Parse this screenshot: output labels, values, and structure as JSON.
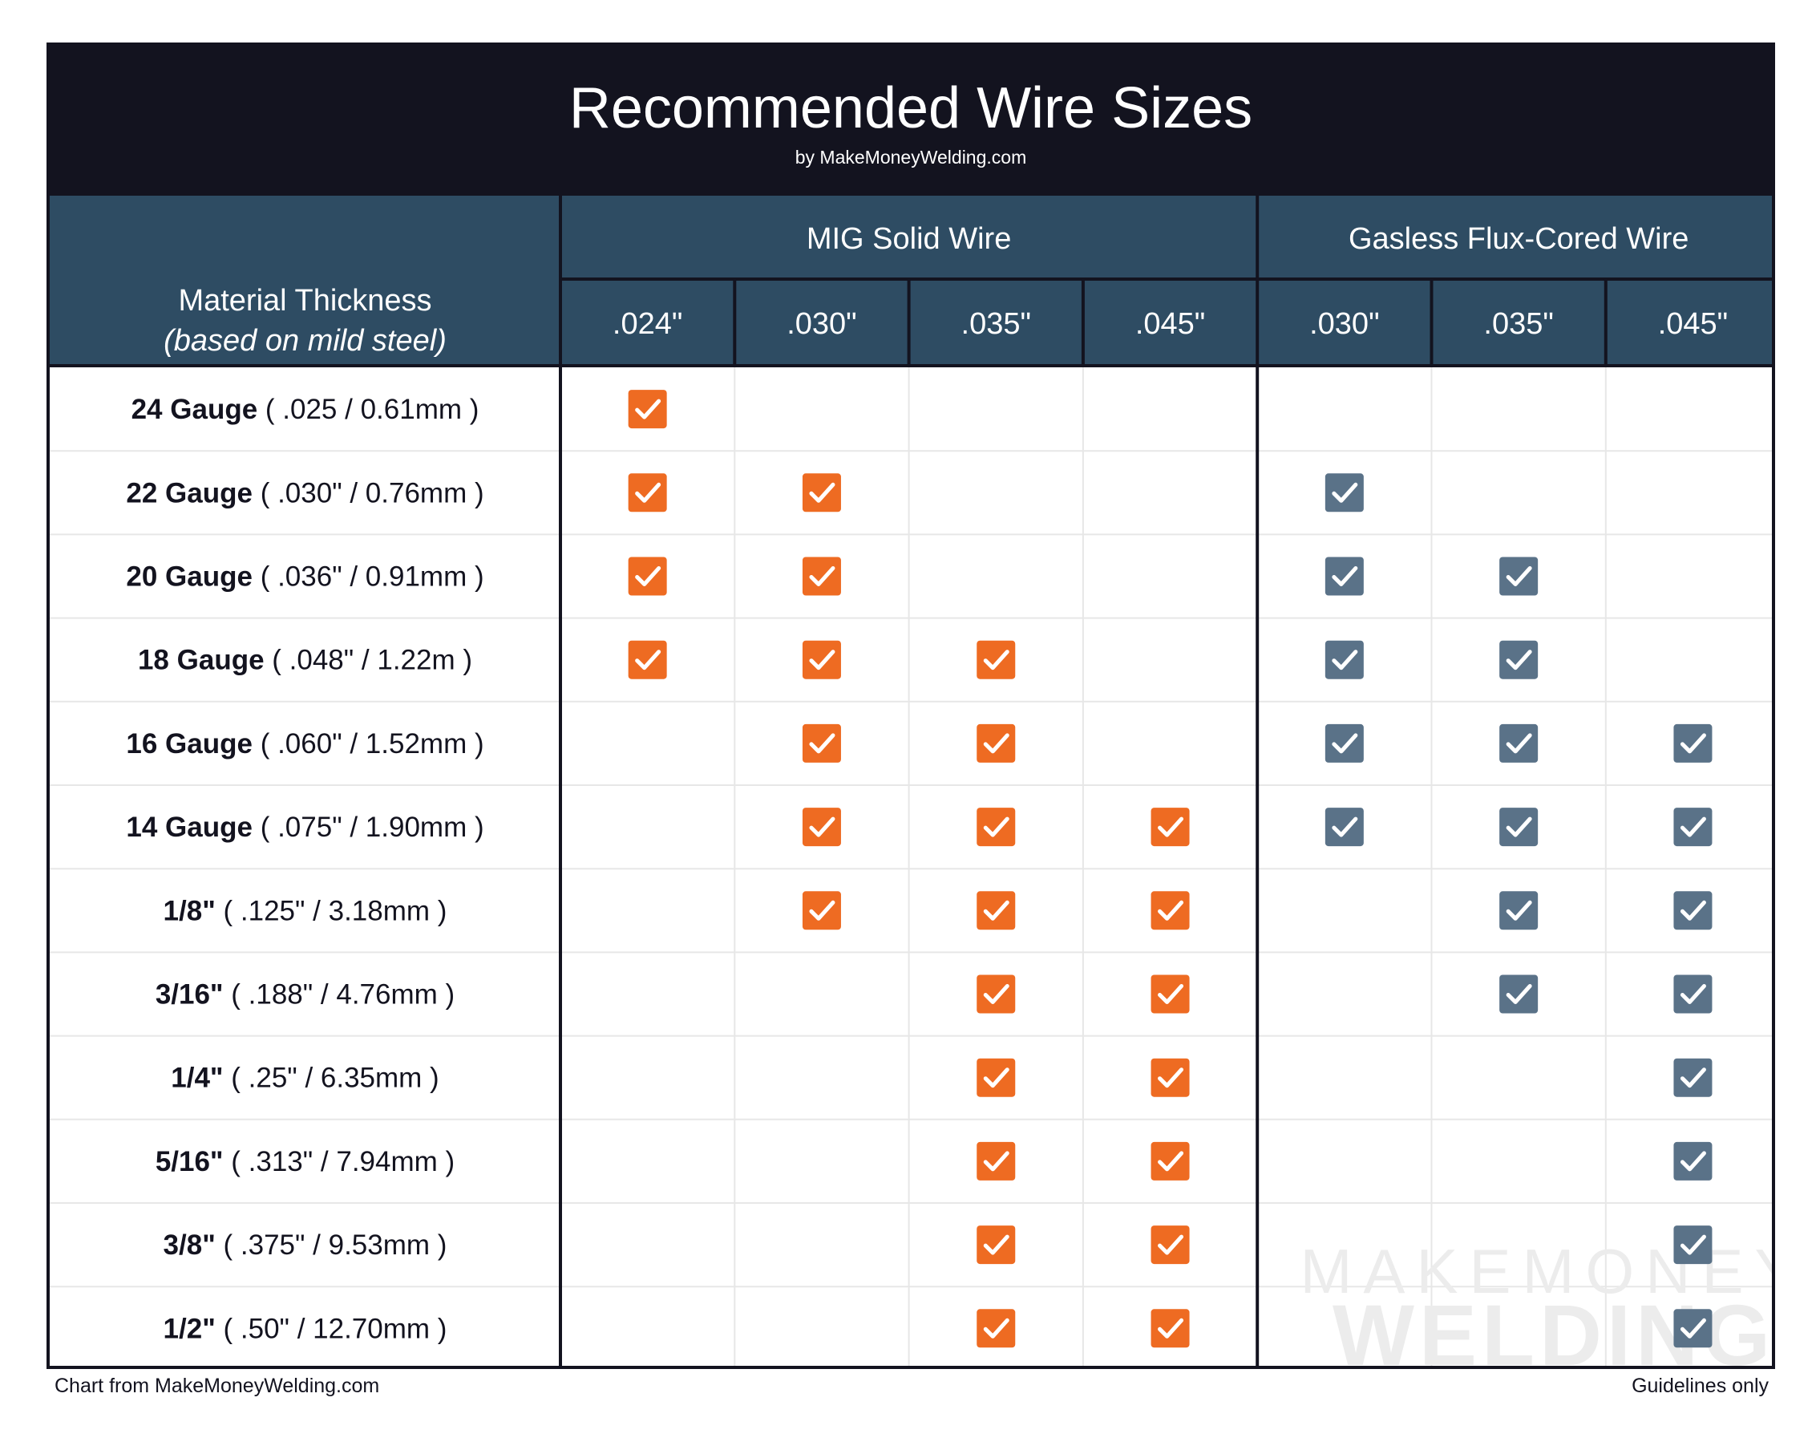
{
  "title": "Recommended Wire Sizes",
  "subtitle": "by MakeMoneyWelding.com",
  "footer": {
    "left": "Chart from MakeMoneyWelding.com",
    "right": "Guidelines only"
  },
  "watermark": [
    "MAKEMONEY",
    "WELDING"
  ],
  "colors": {
    "header_bg": "#2e4c63",
    "title_bg": "#13131f",
    "mig_check": "#ee6b22",
    "flux_check": "#5a7288",
    "grid_line": "#e7e7e7"
  },
  "chart_data": {
    "type": "table",
    "row_header": "Material Thickness",
    "row_header_note": "(based on mild steel)",
    "groups": [
      {
        "name": "MIG Solid Wire",
        "sizes": [
          ".024\"",
          ".030\"",
          ".035\"",
          ".045\""
        ],
        "check_color": "#ee6b22"
      },
      {
        "name": "Gasless Flux-Cored Wire",
        "sizes": [
          ".030\"",
          ".035\"",
          ".045\""
        ],
        "check_color": "#5a7288"
      }
    ],
    "rows": [
      {
        "label": "24 Gauge",
        "spec": "( .025 / 0.61mm )",
        "checks": [
          1,
          0,
          0,
          0,
          0,
          0,
          0
        ]
      },
      {
        "label": "22 Gauge",
        "spec": "( .030\" / 0.76mm )",
        "checks": [
          1,
          1,
          0,
          0,
          1,
          0,
          0
        ]
      },
      {
        "label": "20 Gauge",
        "spec": "( .036\" / 0.91mm )",
        "checks": [
          1,
          1,
          0,
          0,
          1,
          1,
          0
        ]
      },
      {
        "label": "18 Gauge",
        "spec": "( .048\" / 1.22m )",
        "checks": [
          1,
          1,
          1,
          0,
          1,
          1,
          0
        ]
      },
      {
        "label": "16 Gauge",
        "spec": "( .060\" / 1.52mm )",
        "checks": [
          0,
          1,
          1,
          0,
          1,
          1,
          1
        ]
      },
      {
        "label": "14 Gauge",
        "spec": "( .075\" / 1.90mm )",
        "checks": [
          0,
          1,
          1,
          1,
          1,
          1,
          1
        ]
      },
      {
        "label": "1/8\"",
        "spec": "( .125\" / 3.18mm )",
        "checks": [
          0,
          1,
          1,
          1,
          0,
          1,
          1
        ]
      },
      {
        "label": "3/16\"",
        "spec": "( .188\" / 4.76mm )",
        "checks": [
          0,
          0,
          1,
          1,
          0,
          1,
          1
        ]
      },
      {
        "label": "1/4\"",
        "spec": "( .25\" / 6.35mm )",
        "checks": [
          0,
          0,
          1,
          1,
          0,
          0,
          1
        ]
      },
      {
        "label": "5/16\"",
        "spec": "( .313\" / 7.94mm )",
        "checks": [
          0,
          0,
          1,
          1,
          0,
          0,
          1
        ]
      },
      {
        "label": "3/8\"",
        "spec": "( .375\" / 9.53mm )",
        "checks": [
          0,
          0,
          1,
          1,
          0,
          0,
          1
        ]
      },
      {
        "label": "1/2\"",
        "spec": "( .50\" / 12.70mm )",
        "checks": [
          0,
          0,
          1,
          1,
          0,
          0,
          1
        ]
      }
    ]
  }
}
